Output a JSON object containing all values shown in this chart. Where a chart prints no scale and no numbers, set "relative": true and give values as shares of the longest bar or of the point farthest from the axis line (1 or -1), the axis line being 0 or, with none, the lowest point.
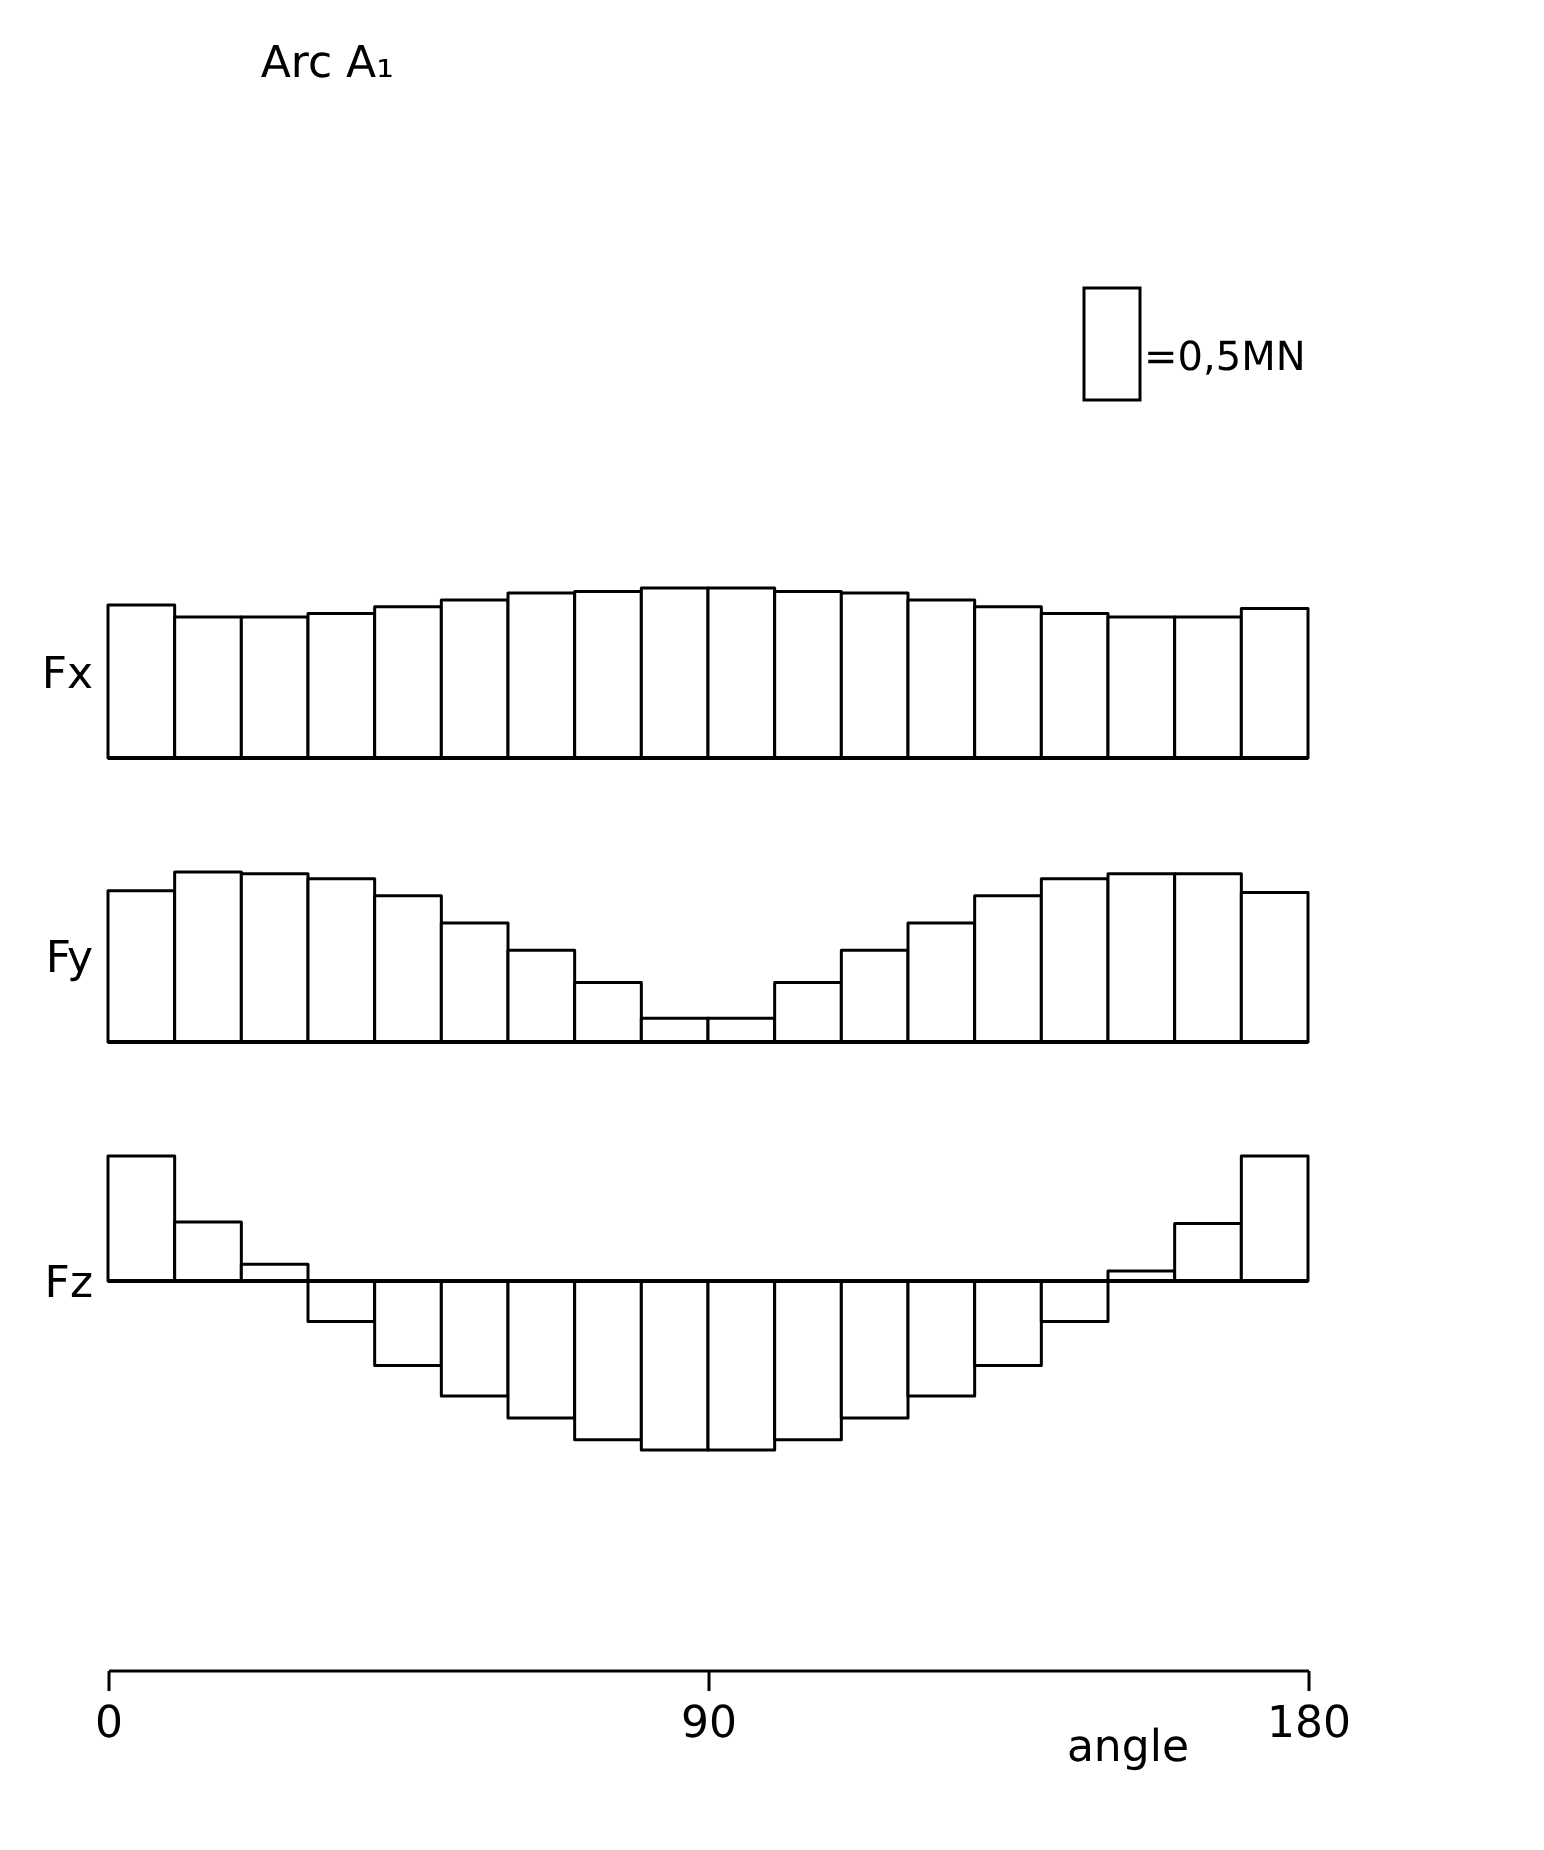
{
  "chart_data": [
    {
      "type": "bar",
      "title": "Arc    A₁",
      "annotations": [
        "=0,5MN"
      ],
      "ylabel": "Fx",
      "relative": true,
      "color": "#ffffff",
      "tick_labels": false,
      "grid": false,
      "categories": [
        null,
        null,
        null,
        null,
        null,
        null,
        null,
        null,
        null,
        null,
        null,
        null,
        null,
        null,
        null,
        null,
        null,
        null
      ],
      "values": [
        0.9,
        0.83,
        0.83,
        0.85,
        0.89,
        0.93,
        0.97,
        0.98,
        1,
        1,
        0.98,
        0.97,
        0.93,
        0.89,
        0.85,
        0.83,
        0.83,
        0.88
      ]
    },
    {
      "type": "bar",
      "ylabel": "Fy",
      "relative": true,
      "color": "#ffffff",
      "tick_labels": false,
      "grid": false,
      "categories": [
        null,
        null,
        null,
        null,
        null,
        null,
        null,
        null,
        null,
        null,
        null,
        null,
        null,
        null,
        null,
        null,
        null,
        null
      ],
      "values": [
        0.89,
        1,
        0.99,
        0.96,
        0.86,
        0.7,
        0.54,
        0.35,
        0.14,
        0.14,
        0.35,
        0.54,
        0.7,
        0.86,
        0.96,
        0.99,
        0.99,
        0.88
      ]
    },
    {
      "type": "bar",
      "ylabel": "Fz",
      "xlabel": "angle",
      "relative": true,
      "color": "#ffffff",
      "tick_labels": "x",
      "grid": false,
      "xlim": [
        0,
        180
      ],
      "xticks": [
        0,
        90,
        180
      ],
      "x": [
        5,
        15,
        25,
        35,
        45,
        55,
        65,
        75,
        85,
        95,
        105,
        115,
        125,
        135,
        145,
        155,
        165,
        175
      ],
      "values": [
        0.74,
        0.35,
        0.1,
        -0.24,
        -0.5,
        -0.68,
        -0.81,
        -0.94,
        -1,
        -1,
        -0.94,
        -0.81,
        -0.68,
        -0.5,
        -0.24,
        0.06,
        0.34,
        0.74
      ]
    }
  ]
}
